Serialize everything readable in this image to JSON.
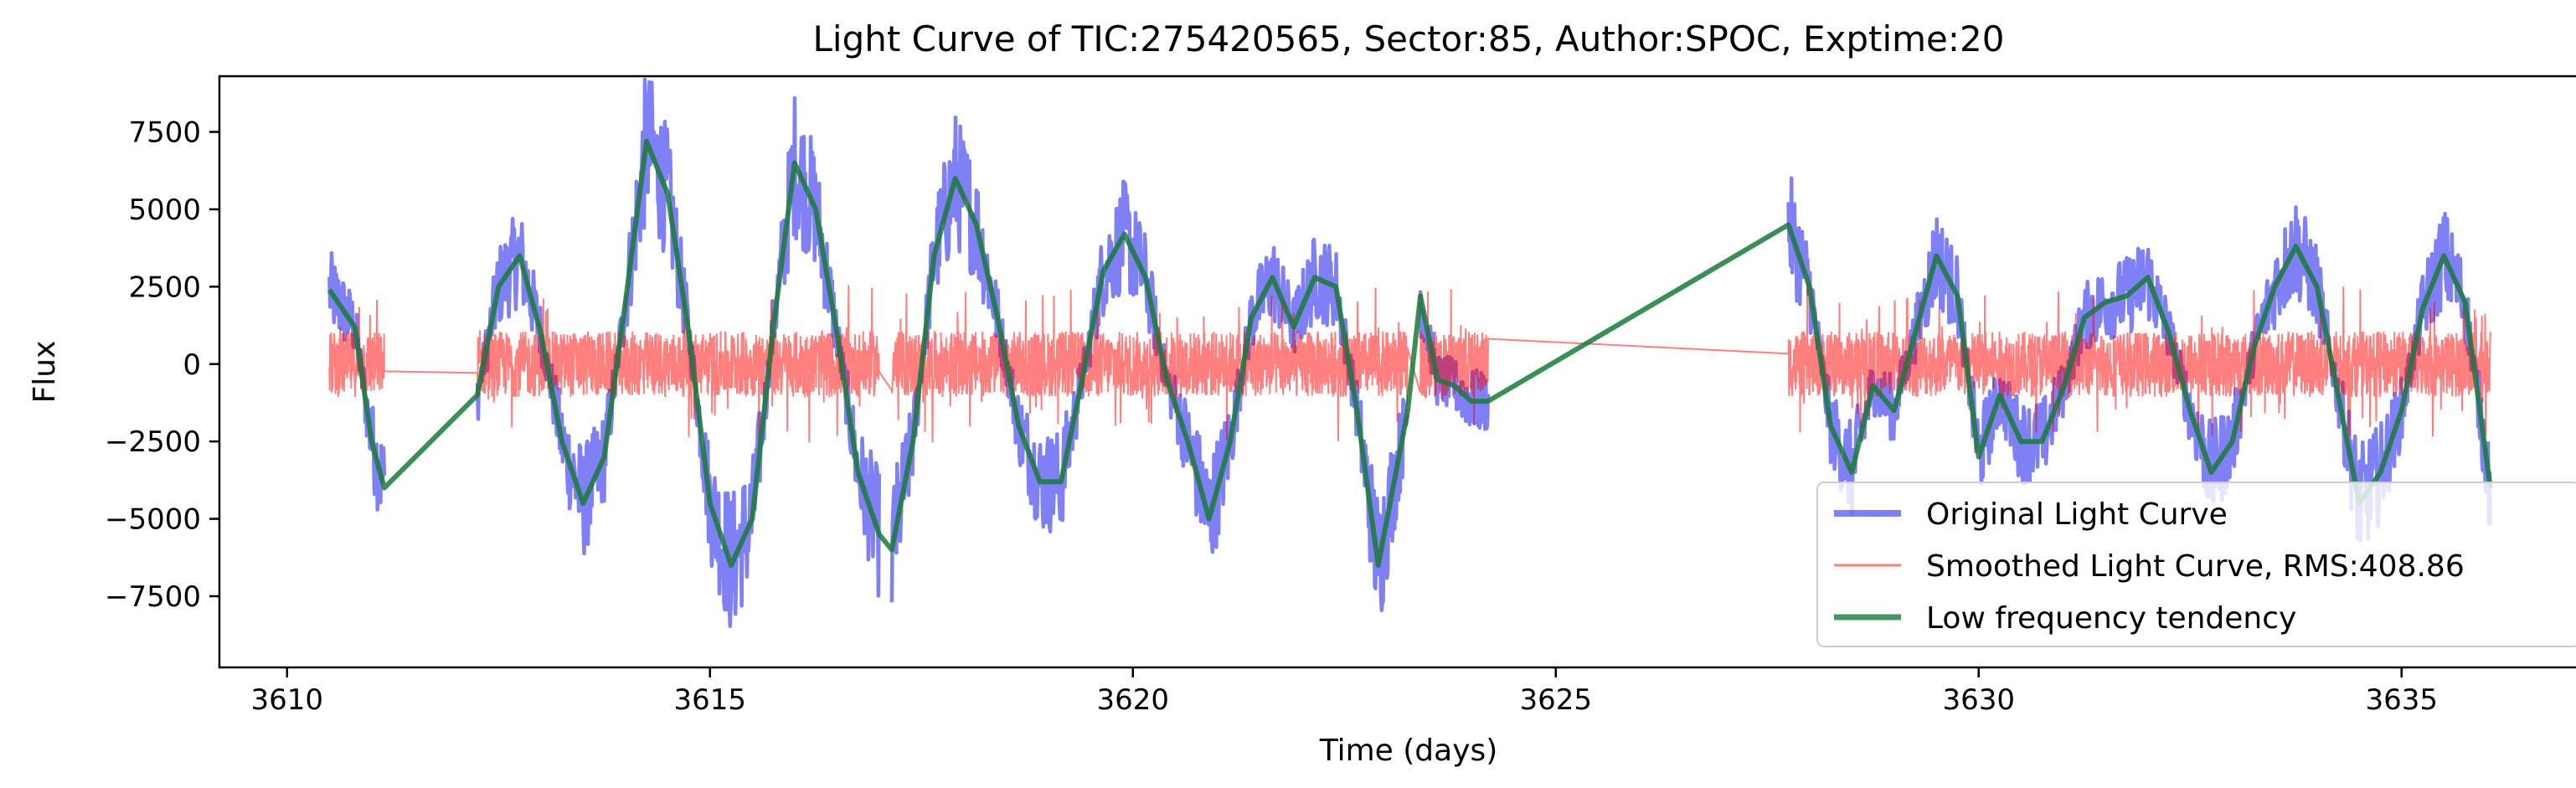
{
  "chart_data": {
    "type": "line",
    "title": "Light Curve of TIC:275420565, Sector:85, Author:SPOC, Exptime:20",
    "xlabel": "Time (days)",
    "ylabel": "Flux",
    "xlim": [
      3609.2,
      3637.3
    ],
    "ylim": [
      -9800,
      9300
    ],
    "x_ticks": [
      3610,
      3615,
      3620,
      3625,
      3630,
      3635
    ],
    "x_tick_labels": [
      "3610",
      "3615",
      "3620",
      "3625",
      "3630",
      "3635"
    ],
    "y_ticks": [
      -7500,
      -5000,
      -2500,
      0,
      2500,
      5000,
      7500
    ],
    "y_tick_labels": [
      "−7500",
      "−5000",
      "−2500",
      "0",
      "2500",
      "5000",
      "7500"
    ],
    "grid": false,
    "legend_position": "lower-right",
    "colors": {
      "original": "#0000ee",
      "smoothed": "#ff0000",
      "tendency": "#1a7a3a"
    },
    "segments": [
      {
        "start": 3610.5,
        "end": 3611.15
      },
      {
        "start": 3612.25,
        "end": 3617.0
      },
      {
        "start": 3617.15,
        "end": 3623.25
      },
      {
        "start": 3623.4,
        "end": 3624.2
      },
      {
        "start": 3627.75,
        "end": 3636.05
      }
    ],
    "series": [
      {
        "name": "Original Light Curve",
        "style": "band",
        "x": [
          3610.5,
          3610.8,
          3611.0,
          3611.15,
          3612.25,
          3612.5,
          3612.75,
          3613.0,
          3613.25,
          3613.5,
          3613.75,
          3614.0,
          3614.25,
          3614.5,
          3614.75,
          3615.0,
          3615.25,
          3615.5,
          3615.75,
          3616.0,
          3616.25,
          3616.5,
          3616.75,
          3617.0,
          3617.15,
          3617.4,
          3617.65,
          3617.9,
          3618.15,
          3618.4,
          3618.65,
          3618.9,
          3619.15,
          3619.4,
          3619.65,
          3619.9,
          3620.15,
          3620.4,
          3620.65,
          3620.9,
          3621.15,
          3621.4,
          3621.65,
          3621.9,
          3622.15,
          3622.4,
          3622.65,
          3622.9,
          3623.25,
          3623.4,
          3623.6,
          3623.8,
          3624.0,
          3624.2,
          3627.75,
          3628.0,
          3628.25,
          3628.5,
          3628.75,
          3629.0,
          3629.25,
          3629.5,
          3629.75,
          3630.0,
          3630.25,
          3630.5,
          3630.75,
          3631.0,
          3631.25,
          3631.5,
          3631.75,
          3632.0,
          3632.25,
          3632.5,
          3632.75,
          3633.0,
          3633.25,
          3633.5,
          3633.75,
          3634.0,
          3634.25,
          3634.5,
          3634.75,
          3635.0,
          3635.25,
          3635.5,
          3635.75,
          3636.05
        ],
        "values": [
          2400,
          1200,
          -2500,
          -4000,
          -1000,
          2500,
          3500,
          1000,
          -2500,
          -4500,
          -3000,
          2000,
          7200,
          5500,
          1000,
          -4500,
          -6500,
          -5000,
          1200,
          6500,
          5000,
          1000,
          -3500,
          -5500,
          -6000,
          -2500,
          3500,
          6000,
          4500,
          1500,
          -2000,
          -3800,
          -3800,
          -500,
          3000,
          4200,
          2800,
          -500,
          -2500,
          -5000,
          -2500,
          1500,
          2800,
          1200,
          2800,
          2500,
          -1500,
          -6500,
          -1500,
          2200,
          -500,
          -700,
          -1200,
          -1200,
          4500,
          2500,
          -2000,
          -3500,
          -700,
          -1500,
          1000,
          3500,
          2200,
          -3000,
          -1000,
          -2500,
          -2500,
          -800,
          1500,
          2000,
          2200,
          2800,
          1000,
          -1500,
          -3500,
          -2500,
          500,
          2500,
          3800,
          2500,
          -1000,
          -4500,
          -3500,
          -1500,
          1800,
          3500,
          2000,
          -4000
        ]
      },
      {
        "name": "Smoothed Light Curve, RMS:408.86",
        "style": "noise",
        "rms": 408.86
      },
      {
        "name": "Low frequency tendency",
        "style": "line",
        "x": [
          3610.5,
          3610.8,
          3611.0,
          3611.15,
          3612.25,
          3612.5,
          3612.75,
          3613.0,
          3613.25,
          3613.5,
          3613.75,
          3614.0,
          3614.25,
          3614.5,
          3614.75,
          3615.0,
          3615.25,
          3615.5,
          3615.75,
          3616.0,
          3616.25,
          3616.5,
          3616.75,
          3617.0,
          3617.15,
          3617.4,
          3617.65,
          3617.9,
          3618.15,
          3618.4,
          3618.65,
          3618.9,
          3619.15,
          3619.4,
          3619.65,
          3619.9,
          3620.15,
          3620.4,
          3620.65,
          3620.9,
          3621.15,
          3621.4,
          3621.65,
          3621.9,
          3622.15,
          3622.4,
          3622.65,
          3622.9,
          3623.25,
          3623.4,
          3623.6,
          3623.8,
          3624.0,
          3624.2,
          3627.75,
          3628.0,
          3628.25,
          3628.5,
          3628.75,
          3629.0,
          3629.25,
          3629.5,
          3629.75,
          3630.0,
          3630.25,
          3630.5,
          3630.75,
          3631.0,
          3631.25,
          3631.5,
          3631.75,
          3632.0,
          3632.25,
          3632.5,
          3632.75,
          3633.0,
          3633.25,
          3633.5,
          3633.75,
          3634.0,
          3634.25,
          3634.5,
          3634.75,
          3635.0,
          3635.25,
          3635.5,
          3635.75,
          3636.05
        ],
        "values": [
          2400,
          1200,
          -2500,
          -4000,
          -1000,
          2500,
          3500,
          1000,
          -2500,
          -4500,
          -3000,
          2000,
          7200,
          5500,
          1000,
          -4500,
          -6500,
          -5000,
          1200,
          6500,
          5000,
          1000,
          -3500,
          -5500,
          -6000,
          -2500,
          3500,
          6000,
          4500,
          1500,
          -2000,
          -3800,
          -3800,
          -500,
          3000,
          4200,
          2800,
          -500,
          -2500,
          -5000,
          -2500,
          1500,
          2800,
          1200,
          2800,
          2500,
          -1500,
          -6500,
          -1500,
          2200,
          -500,
          -700,
          -1200,
          -1200,
          4500,
          2500,
          -2000,
          -3500,
          -700,
          -1500,
          1000,
          3500,
          2200,
          -3000,
          -1000,
          -2500,
          -2500,
          -800,
          1500,
          2000,
          2200,
          2800,
          1000,
          -1500,
          -3500,
          -2500,
          500,
          2500,
          3800,
          2500,
          -1000,
          -4500,
          -3500,
          -1500,
          1800,
          3500,
          2000,
          -4000
        ]
      }
    ]
  }
}
